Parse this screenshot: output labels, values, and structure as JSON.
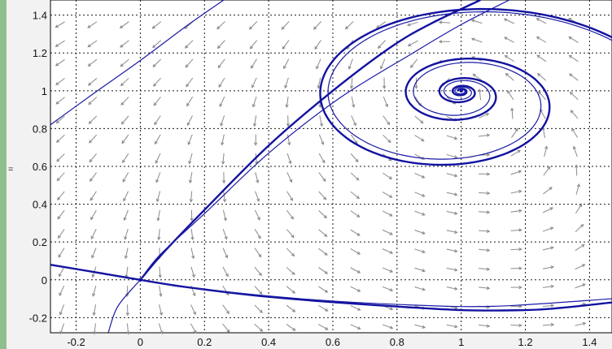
{
  "chart_data": {
    "type": "line",
    "title": "",
    "xlabel": "",
    "ylabel": "",
    "xlim": [
      -0.28,
      1.47
    ],
    "ylim": [
      -0.28,
      1.48
    ],
    "grid": true,
    "x_ticks": [
      "-0.2",
      "0",
      "0.2",
      "0.4",
      "0.6",
      "0.8",
      "1",
      "1.2",
      "1.4"
    ],
    "y_ticks": [
      "-0.2",
      "0",
      "0.2",
      "0.4",
      "0.6",
      "0.8",
      "1",
      "1.2",
      "1.4"
    ],
    "equilibria": [
      {
        "kind": "saddle",
        "x": 0.0,
        "y": 0.0
      },
      {
        "kind": "spiral",
        "x": 1.0,
        "y": 1.0
      }
    ],
    "series": [
      {
        "style": "bold",
        "points": [
          [
            0.0,
            0.0
          ],
          [
            0.07,
            0.14
          ],
          [
            0.2,
            0.37
          ],
          [
            0.4,
            0.71
          ],
          [
            0.6,
            1.0
          ],
          [
            0.78,
            1.23
          ],
          [
            0.9,
            1.35
          ],
          [
            1.06,
            1.48
          ]
        ]
      },
      {
        "style": "bold",
        "points": [
          [
            0.0,
            0.0
          ],
          [
            0.15,
            -0.04
          ],
          [
            0.4,
            -0.09
          ],
          [
            0.7,
            -0.13
          ],
          [
            1.0,
            -0.16
          ],
          [
            1.2,
            -0.16
          ],
          [
            1.3,
            -0.15
          ],
          [
            1.47,
            -0.12
          ]
        ]
      },
      {
        "style": "bold",
        "points": [
          [
            -0.28,
            0.08
          ],
          [
            -0.14,
            0.04
          ],
          [
            0.0,
            0.0
          ]
        ]
      },
      {
        "style": "thin",
        "points": [
          [
            0.0,
            0.0
          ],
          [
            -0.07,
            -0.14
          ],
          [
            -0.1,
            -0.28
          ]
        ]
      },
      {
        "style": "thin",
        "points": [
          [
            -0.28,
            0.82
          ],
          [
            -0.15,
            0.98
          ],
          [
            0.0,
            1.16
          ],
          [
            0.15,
            1.35
          ],
          [
            0.26,
            1.48
          ]
        ]
      },
      {
        "style": "thin",
        "points": [
          [
            0.0,
            0.0
          ],
          [
            0.06,
            0.13
          ],
          [
            0.2,
            0.35
          ],
          [
            0.4,
            0.67
          ],
          [
            0.62,
            0.96
          ],
          [
            0.85,
            1.2
          ],
          [
            1.0,
            1.35
          ],
          [
            1.15,
            1.48
          ]
        ]
      },
      {
        "style": "thin",
        "points": [
          [
            0.0,
            0.0
          ],
          [
            0.2,
            -0.05
          ],
          [
            0.5,
            -0.1
          ],
          [
            0.8,
            -0.13
          ],
          [
            1.1,
            -0.14
          ],
          [
            1.47,
            -0.1
          ]
        ]
      }
    ],
    "spirals": [
      {
        "style": "bold",
        "turns": 4.5,
        "r_max": 0.66
      },
      {
        "style": "thin",
        "turns": 4.1,
        "r_max": 0.6
      }
    ],
    "vector_field": "quiver"
  },
  "ui": {
    "side_mark": "="
  }
}
